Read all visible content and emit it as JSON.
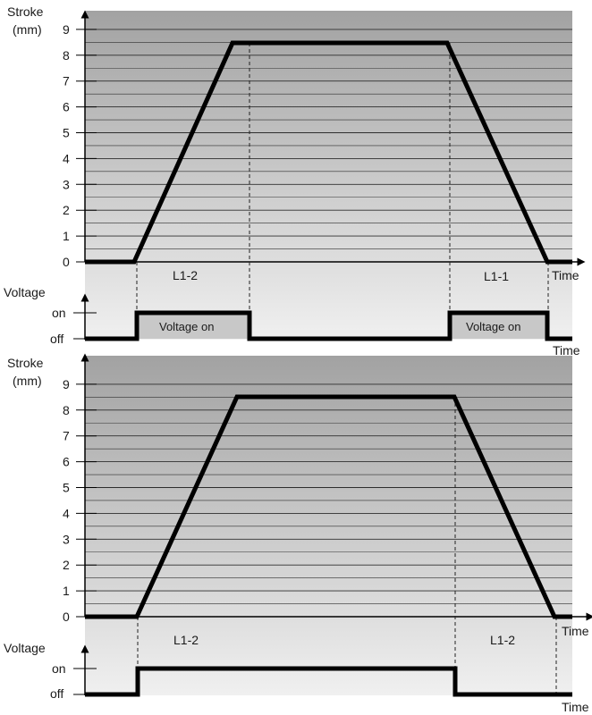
{
  "colors": {
    "background": "#ffffff",
    "plot_top": "#a2a2a2",
    "plot_bottom": "#f0f0f0",
    "voltage_box_fill": "#c8c8c8",
    "trace": "#000000",
    "gridline": "#333333"
  },
  "diagrams": [
    {
      "stroke_label_1": "Stroke",
      "stroke_label_2": "(mm)",
      "y_ticks": [
        "0",
        "1",
        "2",
        "3",
        "4",
        "5",
        "6",
        "7",
        "8",
        "9"
      ],
      "time_label_top": "Time",
      "voltage_label": "Voltage",
      "on_label": "on",
      "off_label": "off",
      "time_label_bottom": "Time",
      "segments": [
        {
          "label": "L1-2"
        },
        {
          "label": "L1-1"
        }
      ],
      "voltage_boxes": [
        {
          "label": "Voltage on"
        },
        {
          "label": "Voltage on"
        }
      ]
    },
    {
      "stroke_label_1": "Stroke",
      "stroke_label_2": "(mm)",
      "y_ticks": [
        "0",
        "1",
        "2",
        "3",
        "4",
        "5",
        "6",
        "7",
        "8",
        "9"
      ],
      "time_label_top": "Time",
      "voltage_label": "Voltage",
      "on_label": "on",
      "off_label": "off",
      "time_label_bottom": "Time",
      "segments": [
        {
          "label": "L1-2"
        },
        {
          "label": "L1-2"
        }
      ],
      "voltage_boxes": []
    }
  ],
  "chart_data": [
    {
      "type": "line",
      "ylabel": "Stroke (mm)",
      "xlabel": "Time",
      "ylim": [
        0,
        9
      ],
      "series": [
        {
          "values": [
            0,
            0,
            8.5,
            8.5,
            0
          ]
        }
      ],
      "voltage": {
        "states": [
          "off",
          "on",
          "off",
          "on",
          "off"
        ]
      }
    },
    {
      "type": "line",
      "ylabel": "Stroke (mm)",
      "xlabel": "Time",
      "ylim": [
        0,
        9
      ],
      "series": [
        {
          "values": [
            0,
            0,
            8.5,
            8.5,
            0
          ]
        }
      ],
      "voltage": {
        "states": [
          "off",
          "on",
          "off"
        ]
      }
    }
  ]
}
